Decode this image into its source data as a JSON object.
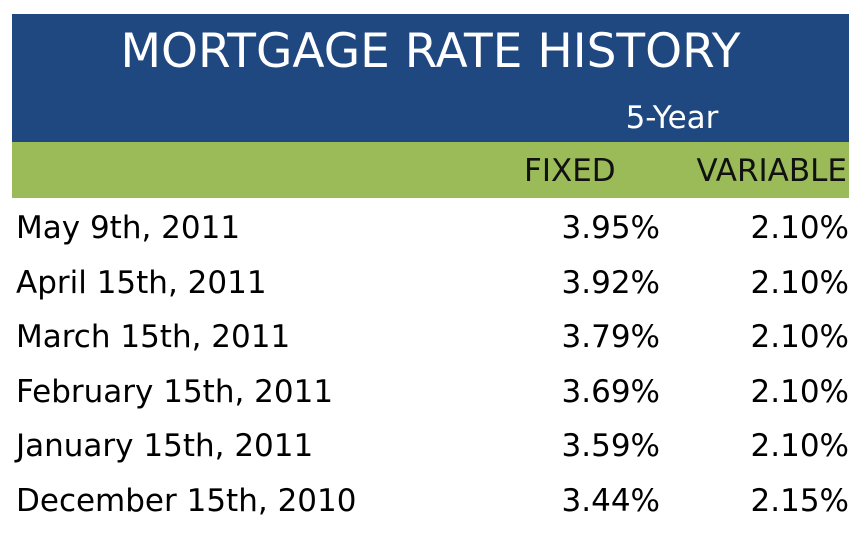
{
  "chart_data": {
    "type": "table",
    "title": "MORTGAGE RATE HISTORY",
    "term": "5-Year",
    "columns": [
      "FIXED",
      "VARIABLE"
    ],
    "rows": [
      {
        "date": "May 9th, 2011",
        "fixed": "3.95%",
        "variable": "2.10%"
      },
      {
        "date": "April 15th, 2011",
        "fixed": "3.92%",
        "variable": "2.10%"
      },
      {
        "date": "March 15th, 2011",
        "fixed": "3.79%",
        "variable": "2.10%"
      },
      {
        "date": "February 15th, 2011",
        "fixed": "3.69%",
        "variable": "2.10%"
      },
      {
        "date": "January 15th, 2011",
        "fixed": "3.59%",
        "variable": "2.10%"
      },
      {
        "date": "December 15th, 2010",
        "fixed": "3.44%",
        "variable": "2.15%"
      }
    ]
  },
  "colors": {
    "title_band": "#1f4780",
    "header_band": "#9bbb59"
  }
}
